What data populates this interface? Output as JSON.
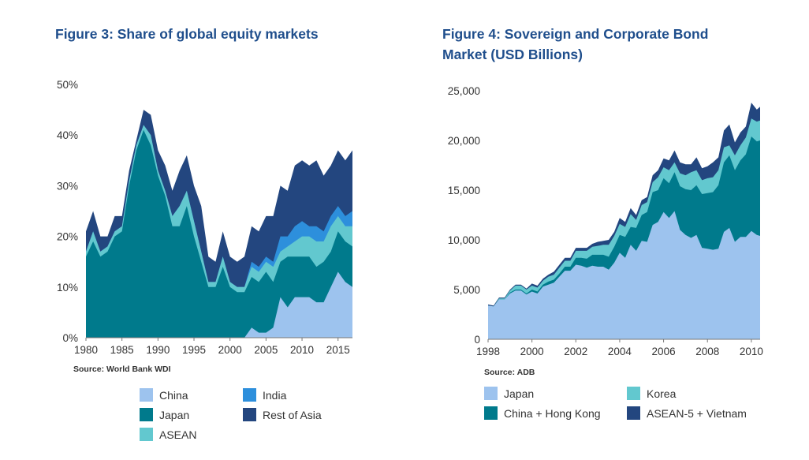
{
  "chart_data": [
    {
      "type": "area",
      "stacked": true,
      "values_mode": "cumulative top edge of each layer",
      "title": "Figure 3: Share of global equity markets",
      "source": "Source: World Bank WDI",
      "xlabel": "",
      "ylabel": "",
      "xlim": [
        1980,
        2017
      ],
      "ylim": [
        0,
        50
      ],
      "y_ticks": [
        0,
        10,
        20,
        30,
        40,
        50
      ],
      "y_tick_labels": [
        "0%",
        "10%",
        "20%",
        "30%",
        "40%",
        "50%"
      ],
      "x_ticks": [
        1980,
        1985,
        1990,
        1995,
        2000,
        2005,
        2010,
        2015
      ],
      "x_tick_labels": [
        "1980",
        "1985",
        "1990",
        "1995",
        "2000",
        "2005",
        "2010",
        "2015"
      ],
      "x": [
        1980,
        1981,
        1982,
        1983,
        1984,
        1985,
        1986,
        1987,
        1988,
        1989,
        1990,
        1991,
        1992,
        1993,
        1994,
        1995,
        1996,
        1997,
        1998,
        1999,
        2000,
        2001,
        2002,
        2003,
        2004,
        2005,
        2006,
        2007,
        2008,
        2009,
        2010,
        2011,
        2012,
        2013,
        2014,
        2015,
        2016,
        2017
      ],
      "series": [
        {
          "name": "China",
          "color": "#9dc3ee",
          "values": [
            0,
            0,
            0,
            0,
            0,
            0,
            0,
            0,
            0,
            0,
            0,
            0,
            0,
            0,
            0,
            0,
            0,
            0,
            0,
            0,
            0,
            0,
            0,
            2,
            1,
            1,
            2,
            8,
            6,
            8,
            8,
            8,
            7,
            7,
            10,
            13,
            11,
            10
          ]
        },
        {
          "name": "Japan",
          "color": "#007a8c",
          "values": [
            16,
            19,
            16,
            17,
            20,
            21,
            30,
            37,
            41,
            38,
            32,
            28,
            22,
            22,
            26,
            20,
            15,
            10,
            10,
            14,
            10,
            9,
            9,
            12,
            11,
            13,
            11,
            15,
            16,
            16,
            16,
            16,
            14,
            15,
            17,
            21,
            19,
            18
          ]
        },
        {
          "name": "ASEAN",
          "color": "#62c8cf",
          "values": [
            17,
            21,
            17,
            18,
            21,
            22,
            31,
            38,
            42,
            40,
            33,
            29,
            24,
            26,
            29,
            23,
            17,
            11,
            11,
            16,
            11,
            10,
            10,
            14,
            13,
            15,
            14,
            17,
            18,
            19,
            20,
            20,
            19,
            19,
            22,
            24,
            22,
            22
          ]
        },
        {
          "name": "India",
          "color": "#2d8fdc",
          "values": [
            17,
            21,
            17,
            18,
            21,
            22,
            31,
            38,
            42,
            40,
            33,
            29,
            24,
            26,
            29,
            23,
            17,
            11,
            11,
            16,
            11,
            10,
            10,
            15,
            14,
            16,
            15,
            20,
            20,
            22,
            23,
            22,
            22,
            21,
            24,
            26,
            24,
            25
          ]
        },
        {
          "name": "Rest of Asia",
          "color": "#23467f",
          "values": [
            21,
            25,
            20,
            20,
            24,
            24,
            33,
            39,
            45,
            44,
            37,
            34,
            29,
            33,
            36,
            30,
            26,
            16,
            15,
            21,
            16,
            15,
            16,
            22,
            21,
            24,
            24,
            30,
            29,
            34,
            35,
            34,
            35,
            32,
            34,
            37,
            35,
            37
          ]
        }
      ],
      "legend": [
        "China",
        "India",
        "Japan",
        "Rest of Asia",
        "ASEAN"
      ],
      "legend_placement": "bottom"
    },
    {
      "type": "area",
      "stacked": true,
      "values_mode": "cumulative top edge of each layer",
      "title": "Figure 4: Sovereign and Corporate Bond Market (USD Billions)",
      "title_lines": [
        "Figure 4: Sovereign and Corporate Bond",
        "Market (USD Billions)"
      ],
      "source": "Source: ADB",
      "xlabel": "",
      "ylabel": "",
      "xlim": [
        1998,
        2010.4
      ],
      "ylim": [
        0,
        25000
      ],
      "y_ticks": [
        0,
        5000,
        10000,
        15000,
        20000,
        25000
      ],
      "y_tick_labels": [
        "0",
        "5,000",
        "10,000",
        "15,000",
        "20,000",
        "25,000"
      ],
      "x_ticks": [
        1998,
        2000,
        2002,
        2004,
        2006,
        2008,
        2010
      ],
      "x_tick_labels": [
        "1998",
        "2000",
        "2002",
        "2004",
        "2006",
        "2008",
        "2010"
      ],
      "x": [
        1998,
        1998.25,
        1998.5,
        1998.75,
        1999,
        1999.25,
        1999.5,
        1999.75,
        2000,
        2000.25,
        2000.5,
        2000.75,
        2001,
        2001.25,
        2001.5,
        2001.75,
        2002,
        2002.25,
        2002.5,
        2002.75,
        2003,
        2003.25,
        2003.5,
        2003.75,
        2004,
        2004.25,
        2004.5,
        2004.75,
        2005,
        2005.25,
        2005.5,
        2005.75,
        2006,
        2006.25,
        2006.5,
        2006.75,
        2007,
        2007.25,
        2007.5,
        2007.75,
        2008,
        2008.25,
        2008.5,
        2008.75,
        2009,
        2009.25,
        2009.5,
        2009.75,
        2010,
        2010.25,
        2010.4
      ],
      "series": [
        {
          "name": "Japan",
          "color": "#9dc3ee",
          "values": [
            3400,
            3300,
            4000,
            4000,
            4600,
            4900,
            4900,
            4500,
            4800,
            4600,
            5300,
            5500,
            5700,
            6300,
            6900,
            6900,
            7500,
            7400,
            7200,
            7400,
            7300,
            7300,
            7000,
            7700,
            8700,
            8200,
            9500,
            8900,
            9900,
            9800,
            11500,
            11800,
            12800,
            12200,
            12900,
            11000,
            10500,
            10200,
            10500,
            9200,
            9100,
            9000,
            9100,
            10800,
            11200,
            9800,
            10300,
            10300,
            10900,
            10500,
            10400
          ]
        },
        {
          "name": "China + Hong Kong",
          "color": "#007a8c",
          "values": [
            3400,
            3300,
            4000,
            4000,
            4700,
            5000,
            5000,
            4600,
            5000,
            4800,
            5500,
            5800,
            6000,
            6600,
            7300,
            7300,
            8200,
            8200,
            8100,
            8500,
            8500,
            8500,
            8300,
            9300,
            10500,
            10300,
            11300,
            11200,
            12500,
            12800,
            14800,
            15000,
            16200,
            15700,
            16800,
            15400,
            15100,
            15000,
            15500,
            14600,
            14700,
            14800,
            15500,
            17800,
            18500,
            17000,
            18000,
            18600,
            20400,
            19900,
            20000
          ]
        },
        {
          "name": "Korea",
          "color": "#62c8cf",
          "values": [
            3400,
            3300,
            4100,
            4100,
            4900,
            5400,
            5400,
            5000,
            5400,
            5200,
            5900,
            6300,
            6500,
            7200,
            7900,
            7900,
            8900,
            8900,
            8900,
            9300,
            9400,
            9500,
            9500,
            10400,
            11600,
            11300,
            12600,
            12000,
            13500,
            13800,
            15800,
            16300,
            17300,
            17000,
            17800,
            16700,
            16500,
            16800,
            17000,
            16000,
            16200,
            16300,
            17000,
            19300,
            19500,
            18500,
            19500,
            20300,
            22200,
            21900,
            22000
          ]
        },
        {
          "name": "ASEAN-5 + Vietnam",
          "color": "#23467f",
          "values": [
            3500,
            3400,
            4200,
            4200,
            5000,
            5500,
            5500,
            5100,
            5600,
            5400,
            6100,
            6500,
            6800,
            7500,
            8200,
            8200,
            9200,
            9200,
            9200,
            9600,
            9800,
            9900,
            10000,
            10800,
            12200,
            11800,
            13200,
            12500,
            14000,
            14300,
            16500,
            17000,
            18200,
            18000,
            19000,
            17800,
            17600,
            17600,
            18300,
            17200,
            17400,
            17800,
            18300,
            21000,
            21600,
            19800,
            20800,
            21400,
            23800,
            23100,
            23400
          ]
        }
      ],
      "legend": [
        "Japan",
        "Korea",
        "China + Hong Kong",
        "ASEAN-5 + Vietnam"
      ],
      "legend_placement": "bottom"
    }
  ]
}
